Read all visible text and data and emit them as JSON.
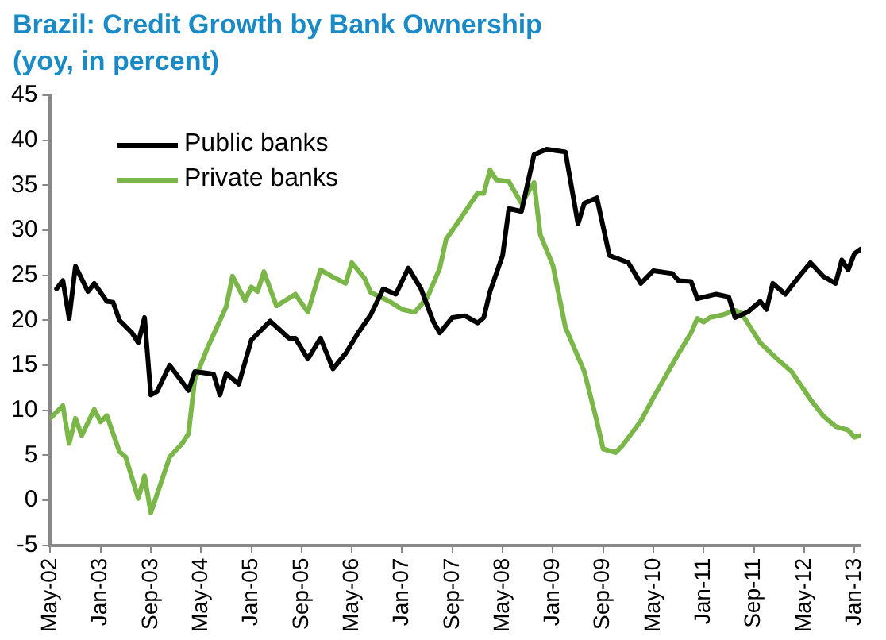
{
  "chart_data": {
    "type": "line",
    "title": "Brazil: Credit Growth by Bank Ownership\n(yoy, in percent)",
    "legend": "top left",
    "grid": false,
    "marker": "none",
    "line_style": "solid",
    "ylim": [
      -5,
      45
    ],
    "yticks": [
      -5,
      0,
      5,
      10,
      15,
      20,
      25,
      30,
      35,
      40,
      45
    ],
    "xlim": [
      "2002-05",
      "2013-02"
    ],
    "xticks": [
      {
        "value": "2002-05",
        "label": "May-02"
      },
      {
        "value": "2003-01",
        "label": "Jan-03"
      },
      {
        "value": "2003-09",
        "label": "Sep-03"
      },
      {
        "value": "2004-05",
        "label": "May-04"
      },
      {
        "value": "2005-01",
        "label": "Jan-05"
      },
      {
        "value": "2005-09",
        "label": "Sep-05"
      },
      {
        "value": "2006-05",
        "label": "May-06"
      },
      {
        "value": "2007-01",
        "label": "Jan-07"
      },
      {
        "value": "2007-09",
        "label": "Sep-07"
      },
      {
        "value": "2008-05",
        "label": "May-08"
      },
      {
        "value": "2009-01",
        "label": "Jan-09"
      },
      {
        "value": "2009-09",
        "label": "Sep-09"
      },
      {
        "value": "2010-05",
        "label": "May-10"
      },
      {
        "value": "2011-01",
        "label": "Jan-11"
      },
      {
        "value": "2011-09",
        "label": "Sep-11"
      },
      {
        "value": "2012-05",
        "label": "May-12"
      },
      {
        "value": "2013-01",
        "label": "Jan-13"
      }
    ],
    "series": [
      {
        "name": "Public banks",
        "color": "#000000",
        "x": [
          "2002-06",
          "2002-07",
          "2002-08",
          "2002-09",
          "2002-11",
          "2002-12",
          "2003-02",
          "2003-03",
          "2003-04",
          "2003-06",
          "2003-07",
          "2003-08",
          "2003-09",
          "2003-10",
          "2003-12",
          "2004-03",
          "2004-04",
          "2004-07",
          "2004-08",
          "2004-09",
          "2004-11",
          "2005-01",
          "2005-04",
          "2005-07",
          "2005-08",
          "2005-10",
          "2005-12",
          "2006-02",
          "2006-04",
          "2006-06",
          "2006-08",
          "2006-10",
          "2006-12",
          "2007-02",
          "2007-04",
          "2007-06",
          "2007-07",
          "2007-09",
          "2007-11",
          "2008-01",
          "2008-02",
          "2008-03",
          "2008-05",
          "2008-06",
          "2008-08",
          "2008-10",
          "2008-12",
          "2009-03",
          "2009-05",
          "2009-06",
          "2009-08",
          "2009-10",
          "2010-01",
          "2010-03",
          "2010-05",
          "2010-08",
          "2010-09",
          "2010-11",
          "2010-12",
          "2011-03",
          "2011-05",
          "2011-06",
          "2011-08",
          "2011-10",
          "2011-11",
          "2011-12",
          "2012-02",
          "2012-04",
          "2012-06",
          "2012-08",
          "2012-10",
          "2012-11",
          "2012-12",
          "2013-01",
          "2013-02"
        ],
        "values": [
          23.5,
          24.4,
          20.2,
          26,
          23.2,
          24.1,
          22.1,
          22,
          20,
          18.6,
          17.5,
          20.3,
          11.7,
          12.1,
          15,
          12.2,
          14.3,
          14,
          11.7,
          14.1,
          12.9,
          17.8,
          19.9,
          18,
          18,
          15.7,
          18,
          14.6,
          16.3,
          18.6,
          20.6,
          23.5,
          22.9,
          25.8,
          23.5,
          19.8,
          18.6,
          20.3,
          20.5,
          19.7,
          20.3,
          23.2,
          27.2,
          32.4,
          32.1,
          38.4,
          39,
          38.7,
          30.7,
          33,
          33.6,
          27.2,
          26.4,
          24.1,
          25.5,
          25.2,
          24.4,
          24.3,
          22.4,
          22.9,
          22.6,
          20.3,
          20.9,
          22.1,
          21.2,
          24.1,
          22.9,
          24.7,
          26.4,
          24.9,
          24.1,
          26.7,
          25.6,
          27.4,
          27.9
        ]
      },
      {
        "name": "Private banks",
        "color": "#7ab648",
        "x": [
          "2002-05",
          "2002-07",
          "2002-08",
          "2002-09",
          "2002-10",
          "2002-12",
          "2003-01",
          "2003-02",
          "2003-04",
          "2003-05",
          "2003-07",
          "2003-08",
          "2003-09",
          "2003-12",
          "2004-02",
          "2004-03",
          "2004-04",
          "2004-06",
          "2004-09",
          "2004-10",
          "2004-12",
          "2005-01",
          "2005-02",
          "2005-03",
          "2005-05",
          "2005-08",
          "2005-10",
          "2005-12",
          "2006-02",
          "2006-04",
          "2006-05",
          "2006-07",
          "2006-08",
          "2006-11",
          "2007-01",
          "2007-03",
          "2007-05",
          "2007-07",
          "2007-08",
          "2007-10",
          "2008-01",
          "2008-02",
          "2008-03",
          "2008-04",
          "2008-06",
          "2008-08",
          "2008-10",
          "2008-11",
          "2009-01",
          "2009-03",
          "2009-06",
          "2009-08",
          "2009-09",
          "2009-11",
          "2009-12",
          "2010-03",
          "2010-05",
          "2010-09",
          "2010-11",
          "2010-12",
          "2011-01",
          "2011-02",
          "2011-04",
          "2011-06",
          "2011-07",
          "2011-10",
          "2012-01",
          "2012-03",
          "2012-06",
          "2012-08",
          "2012-10",
          "2012-12",
          "2013-01",
          "2013-02"
        ],
        "values": [
          9.1,
          10.5,
          6.3,
          9.1,
          7.2,
          10.1,
          8.7,
          9.4,
          5.4,
          4.8,
          0.2,
          2.7,
          -1.4,
          4.8,
          6.3,
          7.4,
          13.4,
          16.9,
          21.5,
          24.9,
          22.2,
          23.7,
          23.2,
          25.4,
          21.6,
          22.9,
          20.9,
          25.6,
          24.8,
          24.1,
          26.4,
          24.7,
          23.1,
          22.1,
          21.2,
          20.9,
          22.5,
          25.8,
          29,
          31,
          34.1,
          34.1,
          36.7,
          35.6,
          35.4,
          33,
          35.3,
          29.5,
          26.1,
          19.2,
          14.3,
          8.8,
          5.7,
          5.3,
          6,
          8.8,
          11.4,
          16.3,
          18.6,
          20.2,
          19.8,
          20.3,
          20.6,
          21.1,
          20.8,
          17.5,
          15.5,
          14.3,
          11.2,
          9.4,
          8.2,
          7.8,
          7,
          7.2
        ]
      }
    ]
  }
}
